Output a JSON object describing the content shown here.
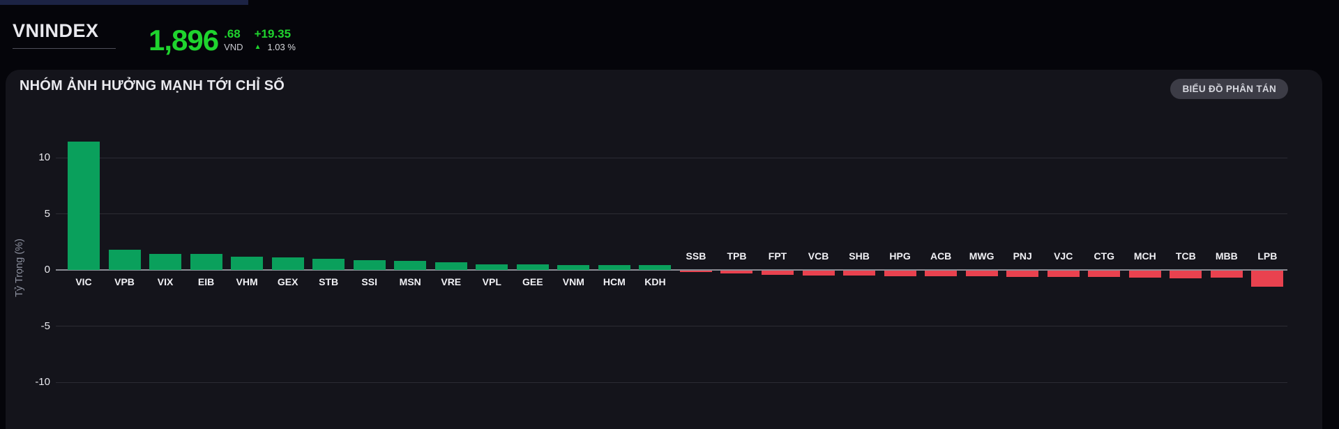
{
  "header": {
    "index_name": "VNINDEX",
    "price_int": "1,896",
    "price_dec": ".68",
    "currency": "VND",
    "change": "+19.35",
    "up_arrow": "▲",
    "change_pct": "1.03 %",
    "up_color": "#1fd42e"
  },
  "panel": {
    "title": "NHÓM ẢNH HƯỞNG MẠNH TỚI CHỈ SỐ",
    "scatter_button": "BIỂU ĐỒ PHÂN TÁN"
  },
  "chart_data": {
    "type": "bar",
    "title": "NHÓM ẢNH HƯỞNG MẠNH TỚI CHỈ SỐ",
    "xlabel": "",
    "ylabel": "Tỷ Trọng (%)",
    "yticks": [
      10,
      5,
      0,
      -5,
      -10
    ],
    "ylim": [
      -12,
      11.6
    ],
    "grid": true,
    "legend": false,
    "categories": [
      "VIC",
      "VPB",
      "VIX",
      "EIB",
      "VHM",
      "GEX",
      "STB",
      "SSI",
      "MSN",
      "VRE",
      "VPL",
      "GEE",
      "VNM",
      "HCM",
      "KDH",
      "SSB",
      "TPB",
      "FPT",
      "VCB",
      "SHB",
      "HPG",
      "ACB",
      "MWG",
      "PNJ",
      "VJC",
      "CTG",
      "MCH",
      "TCB",
      "MBB",
      "LPB"
    ],
    "values": [
      11.4,
      1.8,
      1.45,
      1.4,
      1.2,
      1.1,
      1.02,
      0.86,
      0.8,
      0.66,
      0.5,
      0.48,
      0.46,
      0.45,
      0.44,
      -0.12,
      -0.25,
      -0.38,
      -0.42,
      -0.43,
      -0.47,
      -0.48,
      -0.49,
      -0.53,
      -0.54,
      -0.57,
      -0.6,
      -0.66,
      -0.64,
      -1.44
    ],
    "colors": {
      "positive": "#0aa05c",
      "negative": "#e9424f"
    }
  }
}
